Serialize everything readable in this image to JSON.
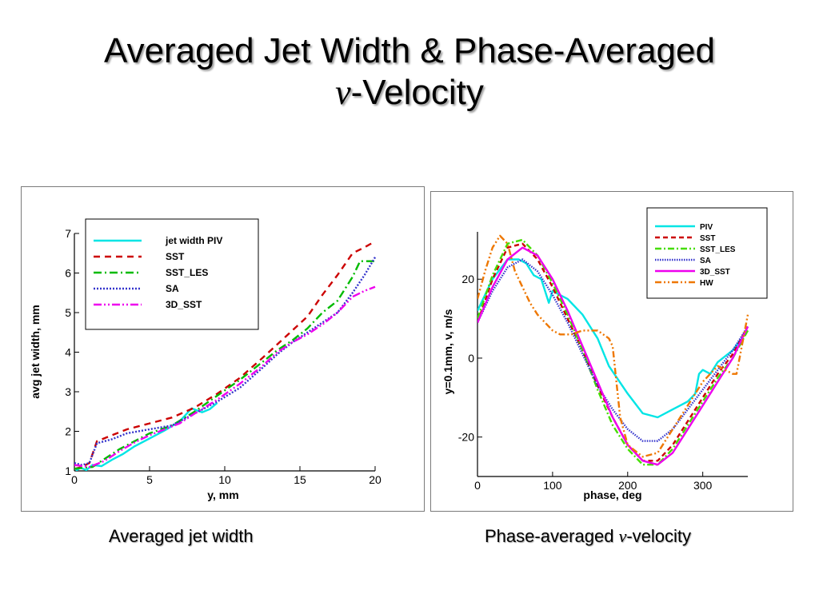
{
  "slide": {
    "title_line1": "Averaged Jet Width & Phase-Averaged",
    "title_v": "v",
    "title_dash": "-",
    "title_line2": "Velocity",
    "caption_left": "Averaged jet width",
    "caption_right_pre": "Phase-averaged",
    "caption_right_v": "v",
    "caption_right_post": "-velocity"
  },
  "chart_data": [
    {
      "type": "line",
      "xlabel": "y, mm",
      "ylabel": "avg jet width, mm",
      "xlim": [
        0,
        20
      ],
      "ylim": [
        1,
        7
      ],
      "xticks": [
        0,
        5,
        10,
        15,
        20
      ],
      "yticks": [
        1,
        2,
        3,
        4,
        5,
        6,
        7
      ],
      "grid": false,
      "legend_position": "top-left",
      "series": [
        {
          "name": "jet width PIV",
          "color": "#00e5e5",
          "dash": "solid",
          "points": [
            [
              0.1,
              1.0
            ],
            [
              0.4,
              1.08
            ],
            [
              0.8,
              1.02
            ],
            [
              1.2,
              1.15
            ],
            [
              1.8,
              1.12
            ],
            [
              2.5,
              1.28
            ],
            [
              3.2,
              1.42
            ],
            [
              4,
              1.62
            ],
            [
              5,
              1.82
            ],
            [
              6,
              2.02
            ],
            [
              7,
              2.25
            ],
            [
              7.8,
              2.58
            ],
            [
              8.5,
              2.48
            ],
            [
              9,
              2.56
            ],
            [
              9.5,
              2.72
            ]
          ]
        },
        {
          "name": "SST",
          "color": "#cc0000",
          "dash": "8 6",
          "points": [
            [
              0,
              1.05
            ],
            [
              0.5,
              1.1
            ],
            [
              1,
              1.2
            ],
            [
              1.5,
              1.75
            ],
            [
              2.5,
              1.9
            ],
            [
              3.5,
              2.05
            ],
            [
              5,
              2.2
            ],
            [
              6.5,
              2.35
            ],
            [
              8,
              2.6
            ],
            [
              9.5,
              2.95
            ],
            [
              11,
              3.35
            ],
            [
              12.5,
              3.85
            ],
            [
              13.5,
              4.2
            ],
            [
              14.5,
              4.55
            ],
            [
              15.5,
              4.9
            ],
            [
              16.5,
              5.45
            ],
            [
              17.5,
              5.95
            ],
            [
              18.5,
              6.5
            ],
            [
              19.3,
              6.65
            ],
            [
              20,
              6.8
            ]
          ]
        },
        {
          "name": "SST_LES",
          "color": "#00bb00",
          "dash": "10 4 2 4",
          "points": [
            [
              0,
              1.05
            ],
            [
              0.6,
              1.08
            ],
            [
              1.2,
              1.1
            ],
            [
              2,
              1.3
            ],
            [
              3,
              1.55
            ],
            [
              4,
              1.75
            ],
            [
              5,
              1.95
            ],
            [
              6.5,
              2.15
            ],
            [
              8,
              2.5
            ],
            [
              9.5,
              2.9
            ],
            [
              11,
              3.3
            ],
            [
              12.5,
              3.75
            ],
            [
              13.5,
              4.05
            ],
            [
              14.5,
              4.3
            ],
            [
              15.5,
              4.6
            ],
            [
              16.5,
              5.0
            ],
            [
              17.5,
              5.3
            ],
            [
              18.5,
              5.9
            ],
            [
              19,
              6.3
            ],
            [
              20,
              6.3
            ]
          ]
        },
        {
          "name": "SA",
          "color": "#3333cc",
          "dash": "2 2",
          "points": [
            [
              0,
              1.2
            ],
            [
              0.5,
              1.15
            ],
            [
              1,
              1.2
            ],
            [
              1.5,
              1.7
            ],
            [
              2.5,
              1.8
            ],
            [
              3.5,
              1.95
            ],
            [
              5,
              2.05
            ],
            [
              6.5,
              2.15
            ],
            [
              8,
              2.45
            ],
            [
              9.5,
              2.75
            ],
            [
              11,
              3.1
            ],
            [
              12.5,
              3.6
            ],
            [
              13.5,
              3.95
            ],
            [
              14.5,
              4.25
            ],
            [
              15.5,
              4.5
            ],
            [
              16.5,
              4.75
            ],
            [
              17.5,
              5.0
            ],
            [
              18.5,
              5.5
            ],
            [
              19.3,
              5.95
            ],
            [
              20,
              6.4
            ]
          ]
        },
        {
          "name": "3D_SST",
          "color": "#ee00ee",
          "dash": "10 3 2 3 2 3",
          "points": [
            [
              0,
              1.15
            ],
            [
              1,
              1.1
            ],
            [
              2,
              1.25
            ],
            [
              3,
              1.5
            ],
            [
              4,
              1.72
            ],
            [
              5,
              1.9
            ],
            [
              6,
              2.05
            ],
            [
              7,
              2.2
            ],
            [
              8,
              2.45
            ],
            [
              9.5,
              2.8
            ],
            [
              11,
              3.2
            ],
            [
              12.5,
              3.65
            ],
            [
              13.5,
              4.0
            ],
            [
              14.5,
              4.25
            ],
            [
              15.5,
              4.45
            ],
            [
              16.5,
              4.7
            ],
            [
              17.5,
              5.0
            ],
            [
              18.5,
              5.4
            ],
            [
              19.3,
              5.55
            ],
            [
              20,
              5.65
            ]
          ]
        }
      ]
    },
    {
      "type": "line",
      "xlabel": "phase, deg",
      "ylabel": "y=0.1mm, v, m/s",
      "xlim": [
        0,
        360
      ],
      "ylim": [
        -30,
        32
      ],
      "xticks": [
        0,
        100,
        200,
        300
      ],
      "yticks": [
        20,
        0,
        -20
      ],
      "grid": false,
      "legend_position": "top-right",
      "series": [
        {
          "name": "PIV",
          "color": "#00e5e5",
          "dash": "solid",
          "points": [
            [
              0,
              12
            ],
            [
              20,
              20
            ],
            [
              40,
              25
            ],
            [
              55,
              25
            ],
            [
              65,
              24
            ],
            [
              75,
              21
            ],
            [
              85,
              20
            ],
            [
              90,
              17
            ],
            [
              95,
              14
            ],
            [
              100,
              17
            ],
            [
              110,
              16
            ],
            [
              120,
              15
            ],
            [
              140,
              11
            ],
            [
              160,
              5
            ],
            [
              175,
              -2
            ],
            [
              200,
              -9
            ],
            [
              220,
              -14
            ],
            [
              240,
              -15
            ],
            [
              260,
              -13
            ],
            [
              280,
              -11
            ],
            [
              290,
              -9
            ],
            [
              295,
              -4
            ],
            [
              300,
              -3
            ],
            [
              310,
              -4
            ],
            [
              320,
              -1
            ],
            [
              340,
              2
            ],
            [
              360,
              7
            ]
          ]
        },
        {
          "name": "SST",
          "color": "#cc0000",
          "dash": "6 4",
          "points": [
            [
              0,
              9
            ],
            [
              20,
              20
            ],
            [
              40,
              28
            ],
            [
              60,
              29
            ],
            [
              80,
              25
            ],
            [
              100,
              18
            ],
            [
              120,
              10
            ],
            [
              140,
              2
            ],
            [
              160,
              -7
            ],
            [
              180,
              -15
            ],
            [
              200,
              -22
            ],
            [
              220,
              -26
            ],
            [
              240,
              -26
            ],
            [
              260,
              -22
            ],
            [
              280,
              -16
            ],
            [
              300,
              -10
            ],
            [
              320,
              -4
            ],
            [
              340,
              1
            ],
            [
              360,
              8
            ]
          ]
        },
        {
          "name": "SST_LES",
          "color": "#44dd00",
          "dash": "8 3 2 3",
          "points": [
            [
              0,
              10
            ],
            [
              20,
              21
            ],
            [
              40,
              29
            ],
            [
              60,
              30
            ],
            [
              80,
              26
            ],
            [
              100,
              19
            ],
            [
              120,
              11
            ],
            [
              140,
              2
            ],
            [
              160,
              -8
            ],
            [
              180,
              -17
            ],
            [
              200,
              -23
            ],
            [
              220,
              -27
            ],
            [
              240,
              -27
            ],
            [
              260,
              -23
            ],
            [
              280,
              -17
            ],
            [
              300,
              -11
            ],
            [
              320,
              -5
            ],
            [
              340,
              0
            ],
            [
              360,
              7
            ]
          ]
        },
        {
          "name": "SA",
          "color": "#3333cc",
          "dash": "1.5 1.5",
          "points": [
            [
              0,
              9
            ],
            [
              20,
              17
            ],
            [
              40,
              23
            ],
            [
              60,
              25
            ],
            [
              80,
              22
            ],
            [
              100,
              16
            ],
            [
              120,
              9
            ],
            [
              140,
              1
            ],
            [
              160,
              -7
            ],
            [
              180,
              -13
            ],
            [
              200,
              -18
            ],
            [
              220,
              -21
            ],
            [
              240,
              -21
            ],
            [
              260,
              -18
            ],
            [
              280,
              -13
            ],
            [
              300,
              -8
            ],
            [
              320,
              -3
            ],
            [
              340,
              2
            ],
            [
              360,
              8
            ]
          ]
        },
        {
          "name": "3D_SST",
          "color": "#ee00ee",
          "dash": "solid",
          "points": [
            [
              0,
              9
            ],
            [
              20,
              18
            ],
            [
              40,
              25
            ],
            [
              60,
              28
            ],
            [
              80,
              26
            ],
            [
              100,
              20
            ],
            [
              120,
              12
            ],
            [
              140,
              3
            ],
            [
              160,
              -6
            ],
            [
              180,
              -15
            ],
            [
              200,
              -22
            ],
            [
              220,
              -26
            ],
            [
              240,
              -27
            ],
            [
              260,
              -24
            ],
            [
              280,
              -18
            ],
            [
              300,
              -12
            ],
            [
              320,
              -6
            ],
            [
              340,
              0
            ],
            [
              360,
              8
            ]
          ]
        },
        {
          "name": "HW",
          "color": "#ee7700",
          "dash": "8 3 2 3 2 3",
          "points": [
            [
              0,
              15
            ],
            [
              10,
              22
            ],
            [
              20,
              28
            ],
            [
              30,
              31
            ],
            [
              40,
              29
            ],
            [
              50,
              22
            ],
            [
              60,
              18
            ],
            [
              70,
              14
            ],
            [
              80,
              11
            ],
            [
              90,
              9
            ],
            [
              100,
              7
            ],
            [
              110,
              6
            ],
            [
              125,
              6
            ],
            [
              140,
              7
            ],
            [
              160,
              7
            ],
            [
              175,
              5
            ],
            [
              180,
              3
            ],
            [
              190,
              -15
            ],
            [
              200,
              -22
            ],
            [
              220,
              -25
            ],
            [
              240,
              -24
            ],
            [
              260,
              -18
            ],
            [
              280,
              -12
            ],
            [
              300,
              -6
            ],
            [
              320,
              -2
            ],
            [
              340,
              -4
            ],
            [
              345,
              -4
            ],
            [
              360,
              11
            ]
          ]
        }
      ]
    }
  ]
}
